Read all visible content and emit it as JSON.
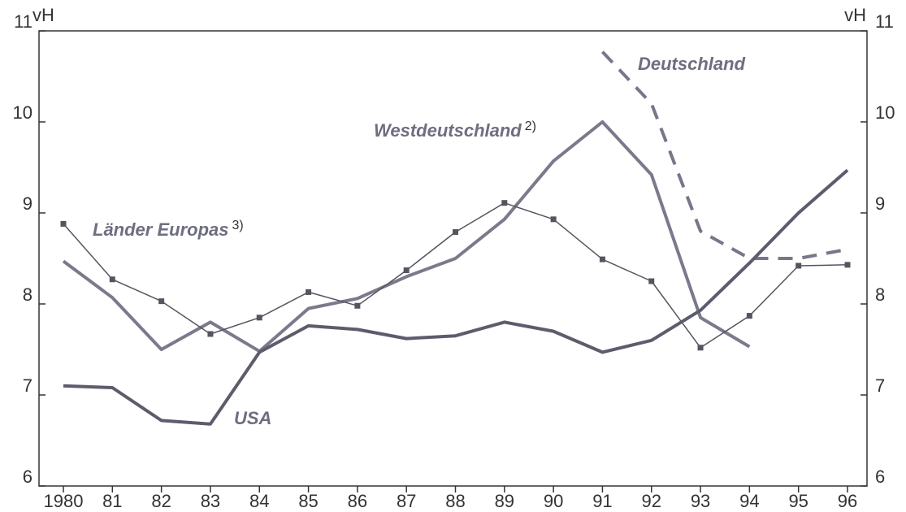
{
  "chart_data": {
    "type": "line",
    "y_unit": "vH",
    "y2_unit": "vH",
    "categories": [
      "1980",
      "81",
      "82",
      "83",
      "84",
      "85",
      "86",
      "87",
      "88",
      "89",
      "90",
      "91",
      "92",
      "93",
      "94",
      "95",
      "96"
    ],
    "series": [
      {
        "name": "Deutschland",
        "color": "#77778a",
        "style": "dashed",
        "values": [
          null,
          null,
          null,
          null,
          null,
          null,
          null,
          null,
          null,
          null,
          null,
          10.77,
          10.2,
          8.8,
          8.5,
          8.5,
          8.6
        ]
      },
      {
        "name": "Westdeutschland",
        "note": "2)",
        "color": "#7a7a8c",
        "style": "thick",
        "values": [
          8.47,
          8.07,
          7.5,
          7.8,
          7.48,
          7.95,
          8.06,
          8.3,
          8.5,
          8.93,
          9.57,
          10.0,
          9.42,
          7.85,
          7.53,
          null,
          null
        ]
      },
      {
        "name": "Länder Europas",
        "note": "3)",
        "color": "#55555f",
        "style": "markers",
        "values": [
          8.88,
          8.27,
          8.03,
          7.67,
          7.85,
          8.13,
          7.98,
          8.37,
          8.79,
          9.11,
          8.93,
          8.49,
          8.25,
          7.52,
          7.87,
          8.42,
          8.43
        ]
      },
      {
        "name": "USA",
        "color": "#5c5c6c",
        "style": "thick",
        "values": [
          7.1,
          7.08,
          6.72,
          6.68,
          7.47,
          7.76,
          7.72,
          7.62,
          7.65,
          7.8,
          7.7,
          7.47,
          7.6,
          7.93,
          8.45,
          9.0,
          9.47
        ]
      }
    ],
    "ylim": [
      6,
      11
    ],
    "yticks": [
      6,
      7,
      8,
      9,
      10,
      11
    ],
    "y2lim": [
      6,
      11
    ],
    "y2ticks": [
      6,
      7,
      8,
      9,
      10,
      11
    ]
  }
}
